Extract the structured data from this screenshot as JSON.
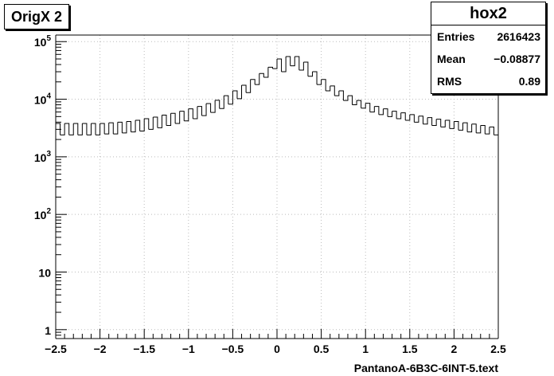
{
  "title": "OrigX 2",
  "stats": {
    "name": "hox2",
    "rows": [
      {
        "label": "Entries",
        "value": "2616423"
      },
      {
        "label": "Mean",
        "value": "−0.08877"
      },
      {
        "label": "RMS",
        "value": "0.89"
      }
    ]
  },
  "chart_data": {
    "type": "histogram",
    "title": "OrigX 2",
    "xlabel": "PantanoA-6B3C-6INT-5.text",
    "ylabel": "",
    "xlim": [
      -2.5,
      2.5
    ],
    "ylim": [
      0.7,
      130000
    ],
    "yscale": "log",
    "grid": true,
    "bin_width": 0.05,
    "x_ticks": [
      {
        "value": -2.5,
        "label": "−2.5"
      },
      {
        "value": -2,
        "label": "−2"
      },
      {
        "value": -1.5,
        "label": "−1.5"
      },
      {
        "value": -1,
        "label": "−1"
      },
      {
        "value": -0.5,
        "label": "−0.5"
      },
      {
        "value": 0,
        "label": "0"
      },
      {
        "value": 0.5,
        "label": "0.5"
      },
      {
        "value": 1,
        "label": "1"
      },
      {
        "value": 1.5,
        "label": "1.5"
      },
      {
        "value": 2,
        "label": "2"
      },
      {
        "value": 2.5,
        "label": "2.5"
      }
    ],
    "y_ticks": [
      {
        "value": 1,
        "base": "1",
        "exp": ""
      },
      {
        "value": 10,
        "base": "10",
        "exp": ""
      },
      {
        "value": 100,
        "base": "10",
        "exp": "2"
      },
      {
        "value": 1000,
        "base": "10",
        "exp": "3"
      },
      {
        "value": 10000,
        "base": "10",
        "exp": "4"
      },
      {
        "value": 100000,
        "base": "10",
        "exp": "5"
      }
    ],
    "values": [
      3800,
      2400,
      3800,
      2400,
      3800,
      2400,
      3800,
      2400,
      3800,
      2400,
      3800,
      2500,
      3900,
      2500,
      4000,
      2600,
      4100,
      2700,
      4300,
      2800,
      4600,
      3000,
      4900,
      3200,
      5300,
      3500,
      5700,
      3800,
      6200,
      4200,
      6800,
      4600,
      7500,
      5200,
      8400,
      5900,
      9600,
      6900,
      11500,
      8200,
      14000,
      10200,
      17500,
      13000,
      22000,
      18000,
      28000,
      24000,
      36000,
      34000,
      50000,
      30000,
      55000,
      38000,
      55000,
      32000,
      44000,
      25000,
      30000,
      18000,
      22000,
      14000,
      17000,
      11500,
      14000,
      9500,
      11500,
      8000,
      9500,
      7000,
      8500,
      6000,
      7500,
      5400,
      6800,
      5000,
      6200,
      4600,
      5800,
      4300,
      5400,
      4000,
      5100,
      3700,
      4800,
      3500,
      4500,
      3300,
      4300,
      3100,
      4100,
      2900,
      3900,
      2700,
      3700,
      2600,
      3500,
      2500,
      3300,
      2400
    ]
  }
}
